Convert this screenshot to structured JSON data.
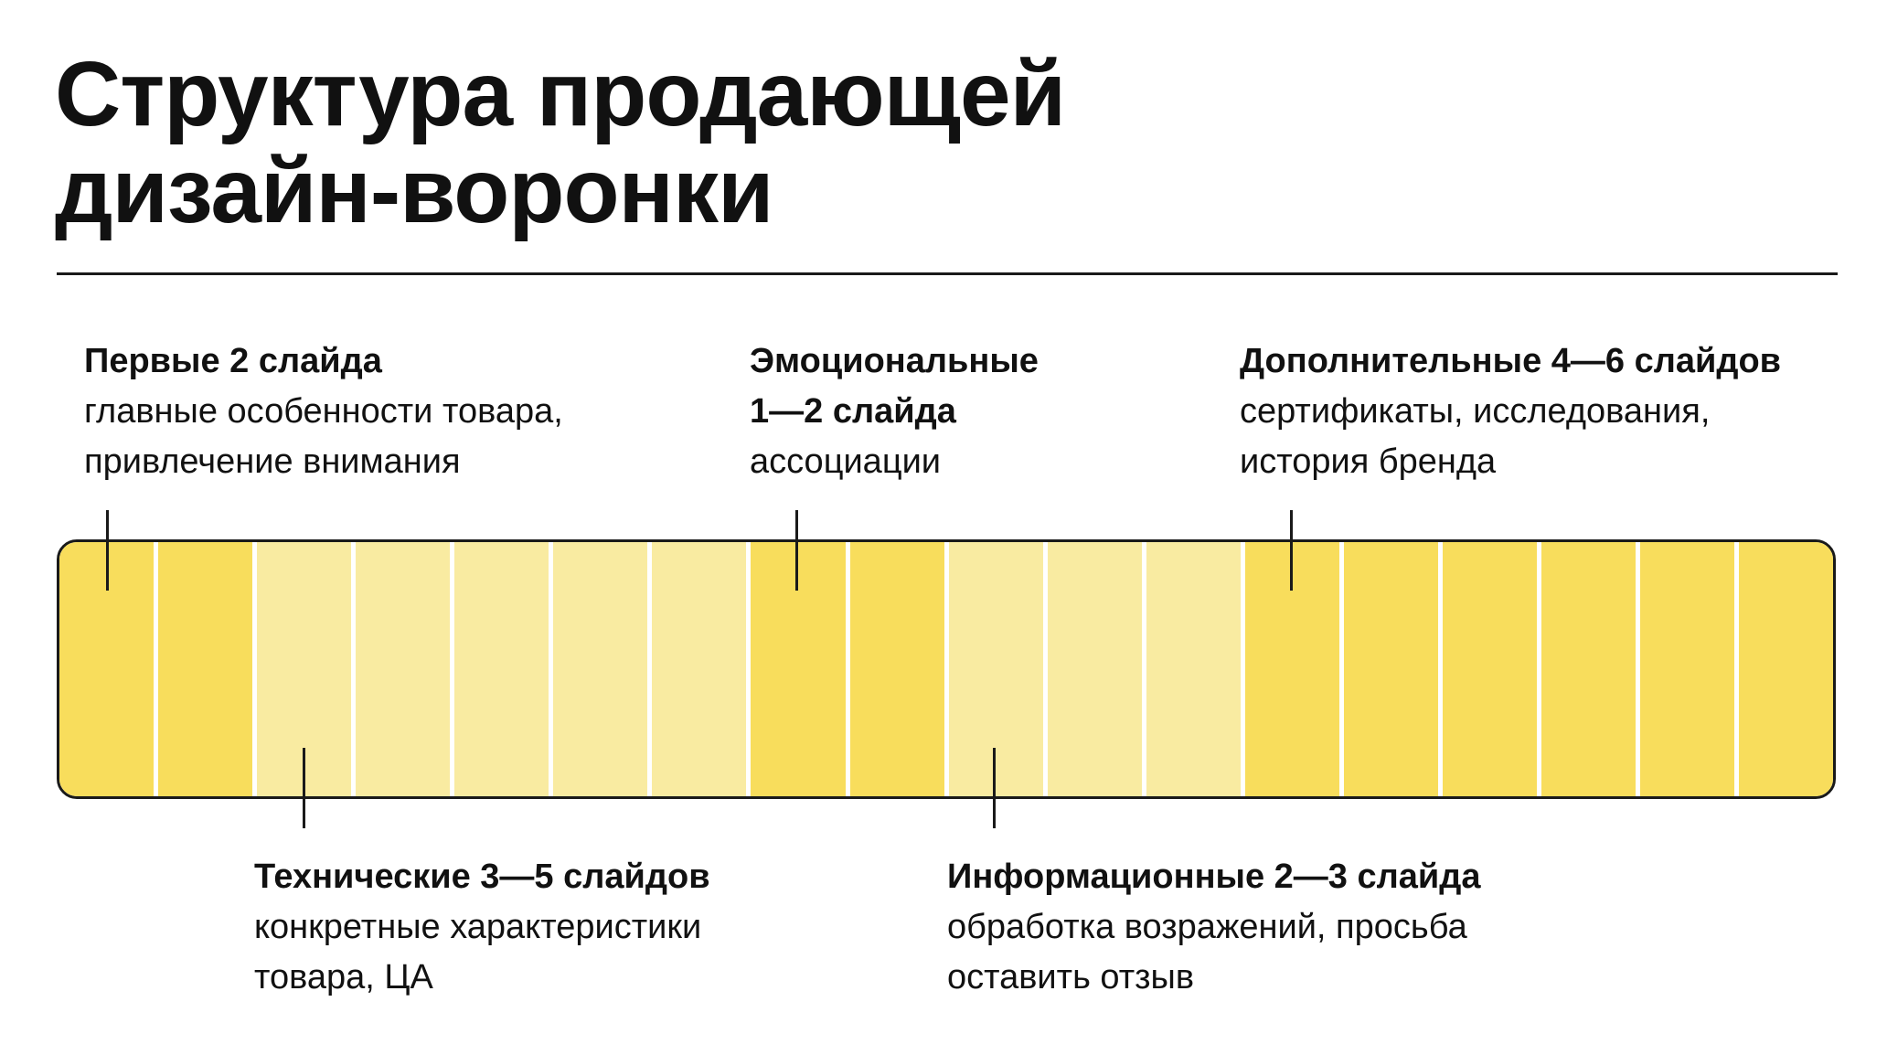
{
  "title": {
    "line1": "Структура продающей",
    "line2": "дизайн-воронки"
  },
  "colors": {
    "strong": "#f8dd5c",
    "light": "#f9eba1",
    "outline": "#1a1a1a",
    "background": "#ffffff"
  },
  "funnel": {
    "segments": [
      "strong",
      "strong",
      "light",
      "light",
      "light",
      "light",
      "light",
      "strong",
      "strong",
      "light",
      "light",
      "light",
      "strong",
      "strong",
      "strong",
      "strong",
      "strong",
      "strong"
    ]
  },
  "callouts": {
    "first": {
      "heading": "Первые 2 слайда",
      "body": "главные особенности товара,\nпривлечение внимания"
    },
    "emotional": {
      "heading": "Эмоциональные\n1—2 слайда",
      "body": "ассоциации"
    },
    "additional": {
      "heading": "Дополнительные 4—6 слайдов",
      "body": "сертификаты, исследования,\nистория бренда"
    },
    "technical": {
      "heading": "Технические 3—5 слайдов",
      "body": "конкретные характеристики\nтовара, ЦА"
    },
    "informational": {
      "heading": "Информационные 2—3 слайда",
      "body": "обработка возражений, просьба\nоставить отзыв"
    }
  }
}
